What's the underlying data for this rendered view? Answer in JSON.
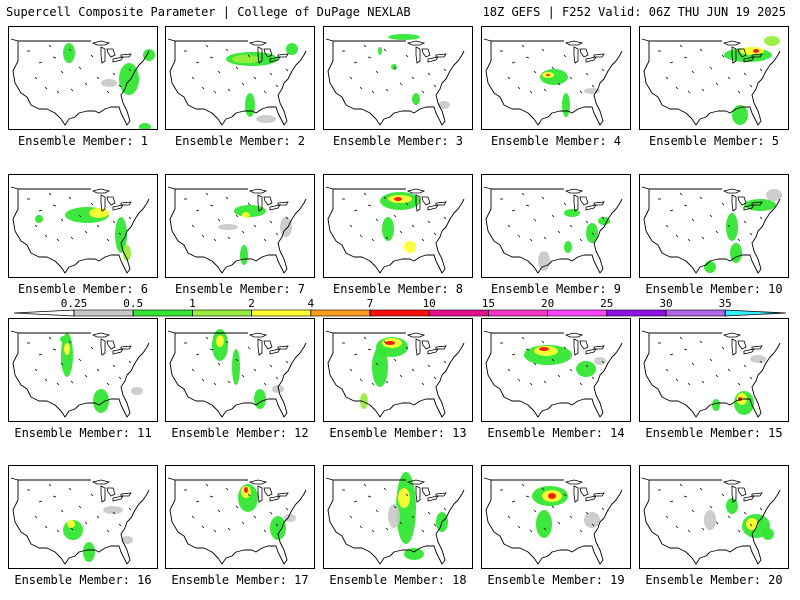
{
  "header": {
    "left": "Supercell Composite Parameter | College of DuPage NEXLAB",
    "right": "18Z GEFS | F252 Valid: 06Z THU JUN 19 2025"
  },
  "colorbar": {
    "ticks": [
      "0.25",
      "0.5",
      "1",
      "2",
      "4",
      "7",
      "10",
      "15",
      "20",
      "25",
      "30",
      "35"
    ],
    "colors": [
      "#c8c8c8",
      "#33e633",
      "#98ee3c",
      "#ffff33",
      "#ff9b1f",
      "#ff1010",
      "#e0108e",
      "#ff33cc",
      "#ff44ff",
      "#9010e8",
      "#b066e6",
      "#33eeff"
    ]
  },
  "panels": [
    {
      "label": "Ensemble Member: 1"
    },
    {
      "label": "Ensemble Member: 2"
    },
    {
      "label": "Ensemble Member: 3"
    },
    {
      "label": "Ensemble Member: 4"
    },
    {
      "label": "Ensemble Member: 5"
    },
    {
      "label": "Ensemble Member: 6"
    },
    {
      "label": "Ensemble Member: 7"
    },
    {
      "label": "Ensemble Member: 8"
    },
    {
      "label": "Ensemble Member: 9"
    },
    {
      "label": "Ensemble Member: 10"
    },
    {
      "label": "Ensemble Member: 11"
    },
    {
      "label": "Ensemble Member: 12"
    },
    {
      "label": "Ensemble Member: 13"
    },
    {
      "label": "Ensemble Member: 14"
    },
    {
      "label": "Ensemble Member: 15"
    },
    {
      "label": "Ensemble Member: 16"
    },
    {
      "label": "Ensemble Member: 17"
    },
    {
      "label": "Ensemble Member: 18"
    },
    {
      "label": "Ensemble Member: 19"
    },
    {
      "label": "Ensemble Member: 20"
    }
  ]
}
